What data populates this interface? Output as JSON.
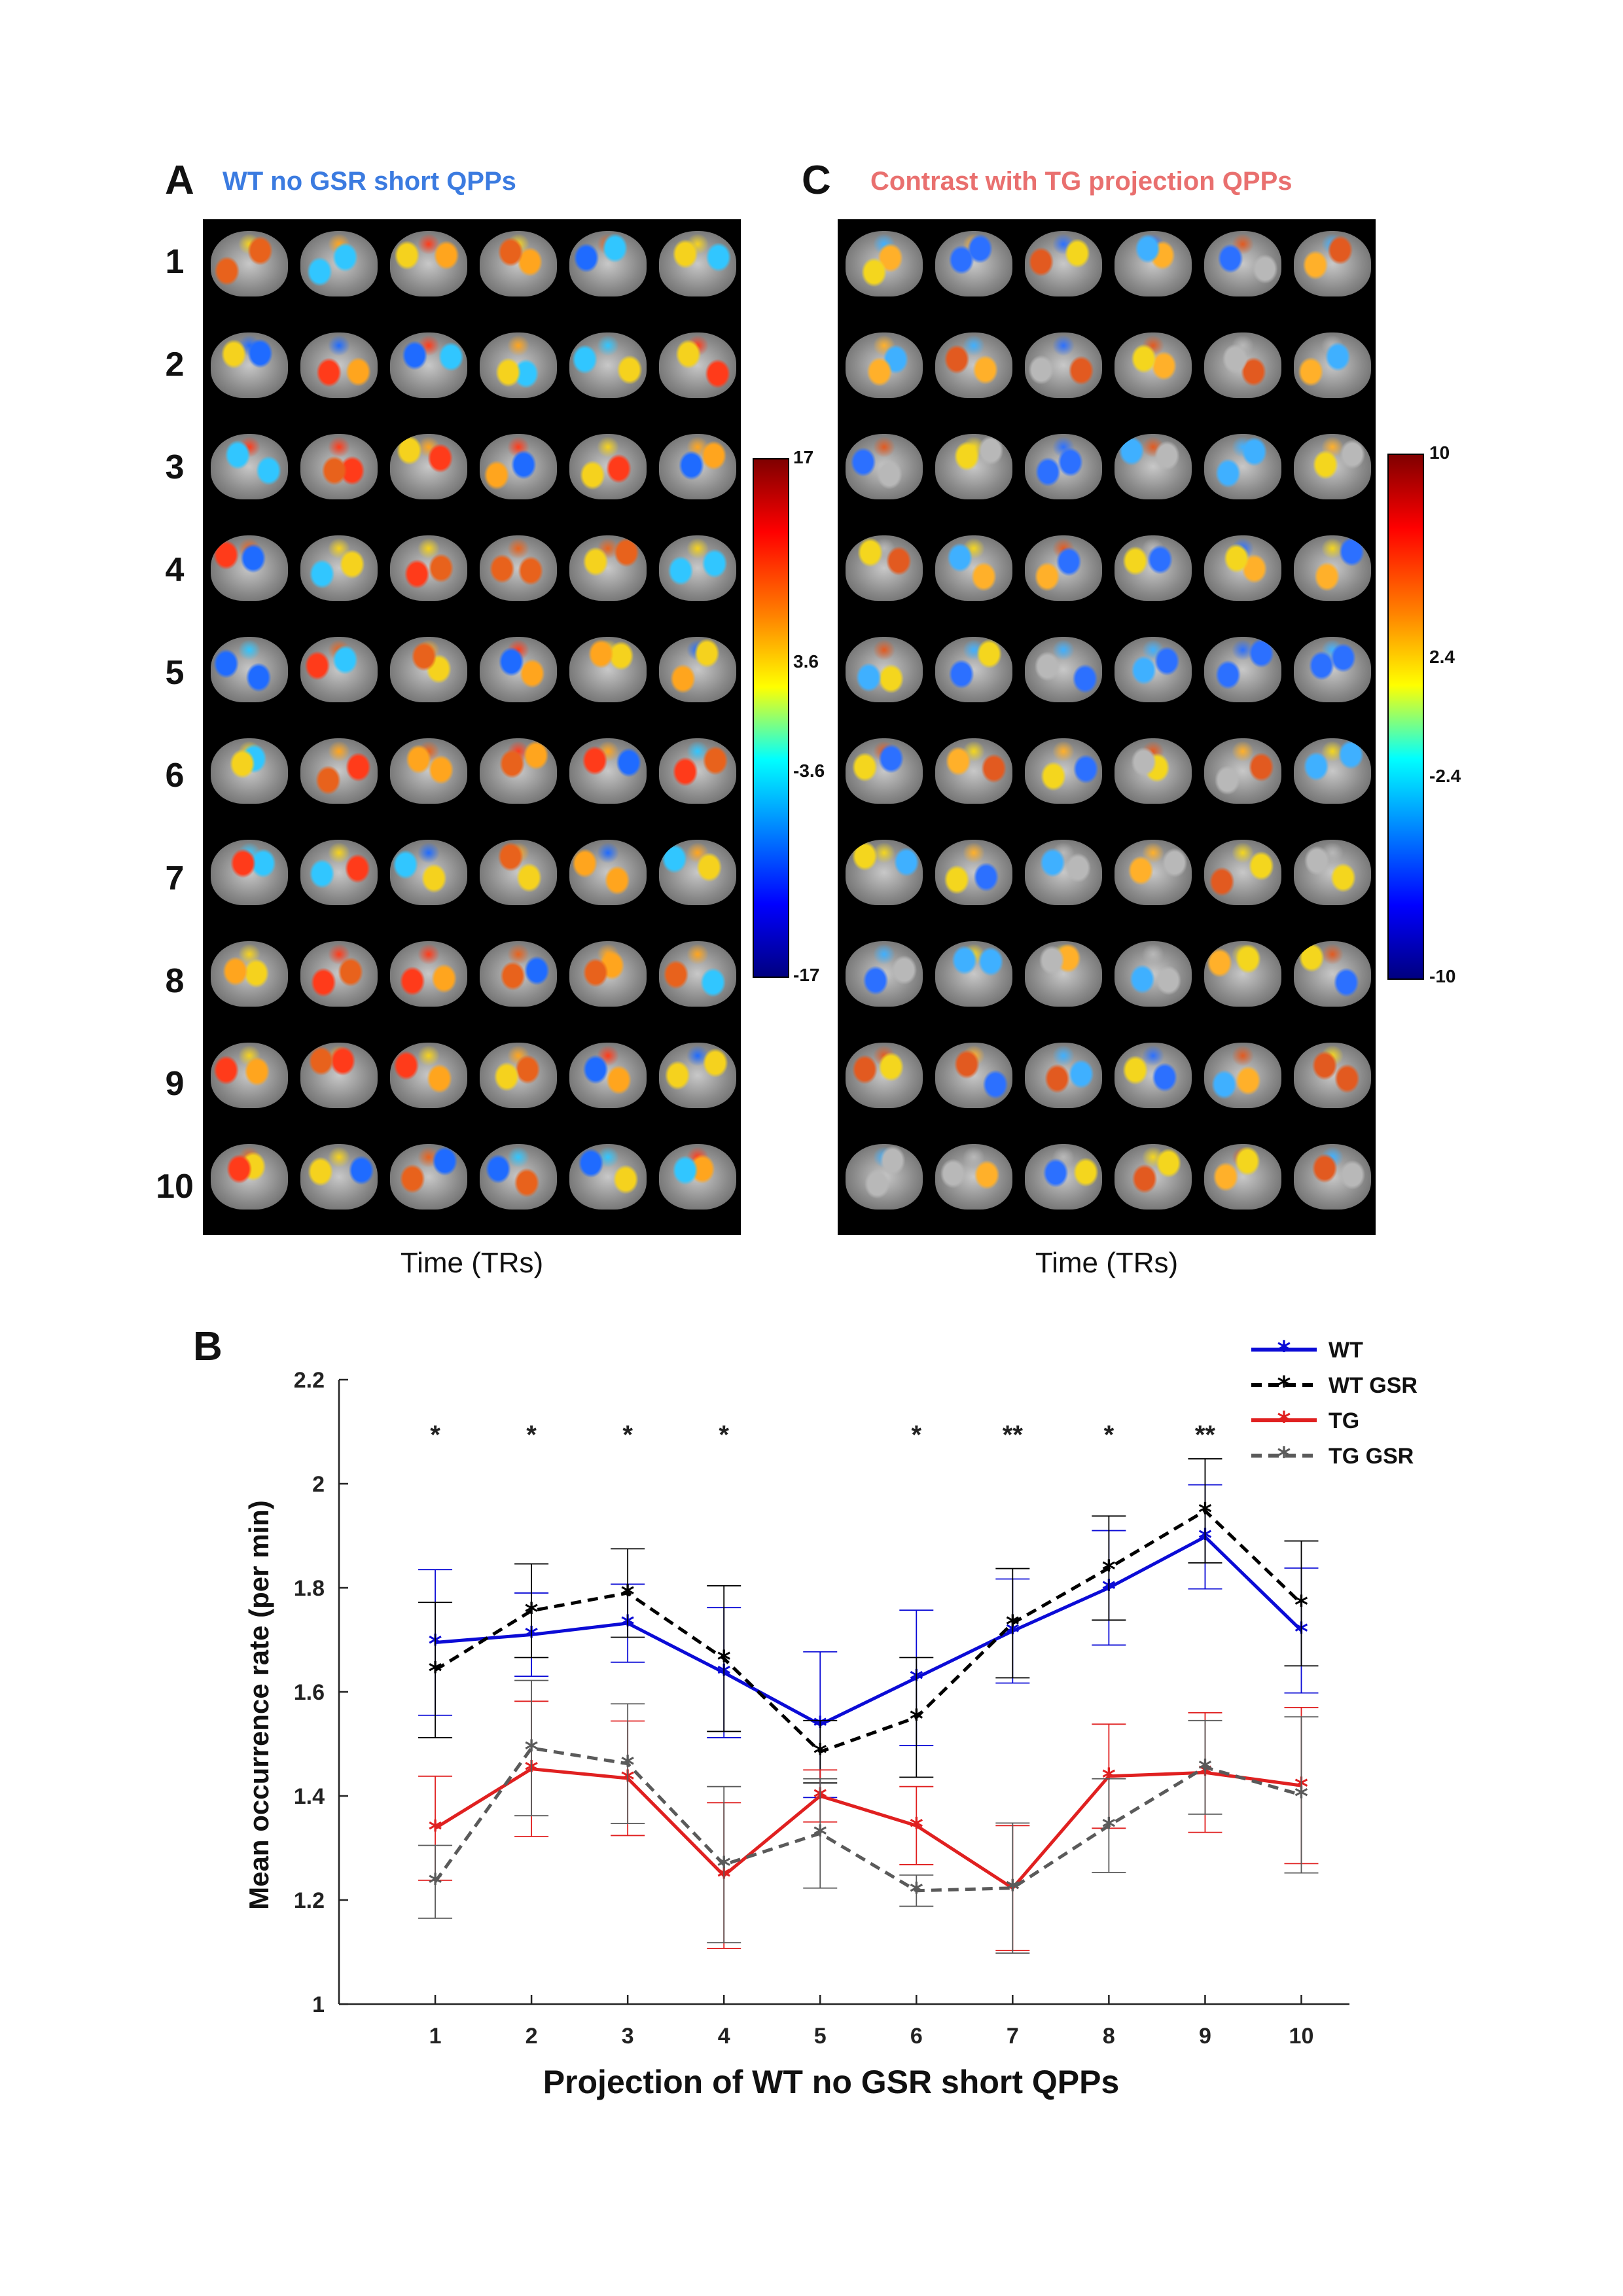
{
  "panel_a": {
    "letter": "A",
    "title": "WT no GSR short QPPs",
    "title_color": "#3b7be0",
    "row_labels": [
      "1",
      "2",
      "3",
      "4",
      "5",
      "6",
      "7",
      "8",
      "9",
      "10"
    ],
    "xlabel": "Time (TRs)",
    "colorbar_ticks": [
      "17",
      "3.6",
      "-3.6",
      "-17"
    ]
  },
  "panel_c": {
    "letter": "C",
    "title": "Contrast with TG projection QPPs",
    "title_color": "#e9706f",
    "xlabel": "Time (TRs)",
    "colorbar_ticks": [
      "10",
      "2.4",
      "-2.4",
      "-10"
    ]
  },
  "panel_b": {
    "letter": "B"
  },
  "chart_data": {
    "type": "line",
    "xlabel": "Projection of  WT no GSR short QPPs",
    "ylabel": "Mean occurrence rate (per min)",
    "x": [
      1,
      2,
      3,
      4,
      5,
      6,
      7,
      8,
      9,
      10
    ],
    "xticks": [
      "1",
      "2",
      "3",
      "4",
      "5",
      "6",
      "7",
      "8",
      "9",
      "10"
    ],
    "yticks": [
      "1",
      "1.2",
      "1.4",
      "1.6",
      "1.8",
      "2",
      "2.2"
    ],
    "ylim": [
      1,
      2.2
    ],
    "xlim": [
      0,
      10.5
    ],
    "significance": [
      "*",
      "*",
      "*",
      "*",
      "",
      "*",
      "**",
      "*",
      "**",
      ""
    ],
    "series": [
      {
        "name": "WT",
        "color": "#0b0bd6",
        "dashed": false,
        "values": [
          1.695,
          1.71,
          1.732,
          1.637,
          1.537,
          1.627,
          1.717,
          1.8,
          1.898,
          1.718
        ],
        "errors": [
          0.14,
          0.08,
          0.075,
          0.125,
          0.14,
          0.13,
          0.1,
          0.11,
          0.1,
          0.12
        ]
      },
      {
        "name": "WT GSR",
        "color": "#000000",
        "dashed": true,
        "values": [
          1.642,
          1.756,
          1.79,
          1.664,
          1.485,
          1.551,
          1.732,
          1.838,
          1.948,
          1.77
        ],
        "errors": [
          0.13,
          0.09,
          0.085,
          0.14,
          0.06,
          0.115,
          0.105,
          0.1,
          0.1,
          0.12
        ]
      },
      {
        "name": "TG",
        "color": "#e02020",
        "dashed": false,
        "values": [
          1.338,
          1.452,
          1.434,
          1.247,
          1.4,
          1.343,
          1.223,
          1.438,
          1.445,
          1.42
        ],
        "errors": [
          0.1,
          0.13,
          0.11,
          0.14,
          0.05,
          0.075,
          0.12,
          0.1,
          0.115,
          0.15
        ]
      },
      {
        "name": "TG GSR",
        "color": "#5a5a5a",
        "dashed": true,
        "values": [
          1.235,
          1.492,
          1.462,
          1.268,
          1.328,
          1.218,
          1.223,
          1.343,
          1.455,
          1.402
        ],
        "errors": [
          0.07,
          0.13,
          0.115,
          0.15,
          0.105,
          0.03,
          0.125,
          0.09,
          0.09,
          0.15
        ]
      }
    ]
  }
}
